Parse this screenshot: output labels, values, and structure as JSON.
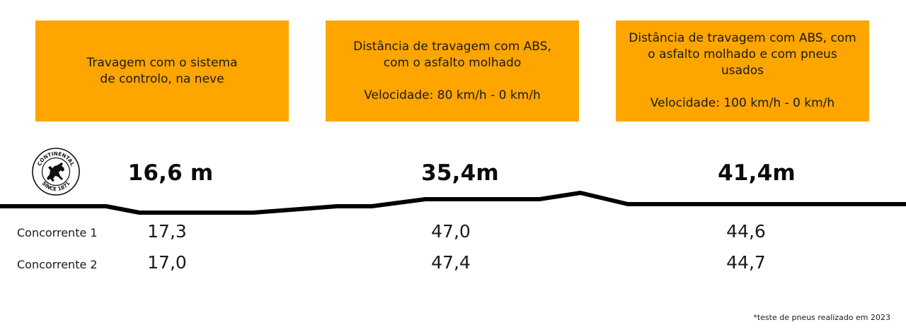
{
  "chart_data": {
    "type": "table",
    "tests": [
      {
        "title": "Travagem com o sistema\nde controlo, na neve",
        "speed": "",
        "continental": "16,6 m",
        "competitor_1": "17,3",
        "competitor_2": "17,0"
      },
      {
        "title": "Distância de travagem com ABS,\ncom o asfalto molhado",
        "speed": "Velocidade: 80 km/h - 0 km/h",
        "continental": "35,4m",
        "competitor_1": "47,0",
        "competitor_2": "47,4"
      },
      {
        "title": "Distância de travagem com ABS, com\no asfalto molhado e com pneus usados",
        "speed": "Velocidade: 100 km/h - 0 km/h",
        "continental": "41,4m",
        "competitor_1": "44,6",
        "competitor_2": "44,7"
      }
    ],
    "row_labels": [
      "Concorrente 1",
      "Concorrente 2"
    ],
    "accent_color": "#FFA500"
  },
  "logo": {
    "text_top": "CONTINENTAL",
    "text_bottom": "SINCE 1871",
    "icon": "rearing-horse-icon"
  },
  "footnote": "*teste de pneus realizado em 2023"
}
